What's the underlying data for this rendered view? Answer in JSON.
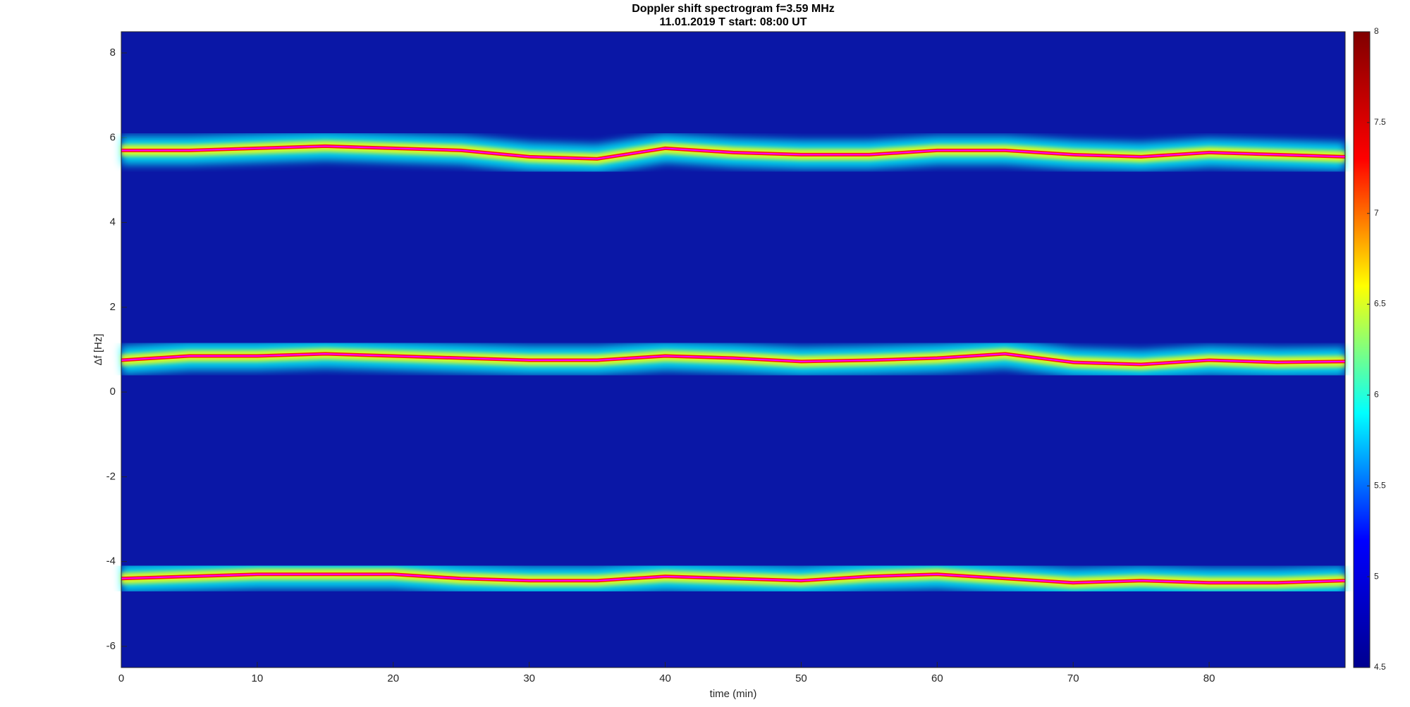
{
  "chart_data": {
    "type": "spectrogram",
    "title": "Doppler shift spectrogram f=3.59 MHz",
    "subtitle": "11.01.2019   T start: 08:00 UT",
    "x_label": "time (min)",
    "y_label": "Δf [Hz]",
    "xlim": [
      0,
      90
    ],
    "xticks": [
      0,
      10,
      20,
      30,
      40,
      50,
      60,
      70,
      80
    ],
    "ylim": [
      -6.5,
      8.5
    ],
    "yticks": [
      -6,
      -4,
      -2,
      0,
      2,
      4,
      6,
      8
    ],
    "colormap": "jet",
    "clim": [
      4.5,
      8
    ],
    "cticks": [
      4.5,
      5,
      5.5,
      6,
      6.5,
      7,
      7.5,
      8
    ],
    "x": [
      0,
      5,
      10,
      15,
      20,
      25,
      30,
      35,
      40,
      45,
      50,
      55,
      60,
      65,
      70,
      75,
      80,
      85,
      90
    ],
    "series": [
      {
        "color": "#ff00ff",
        "values": [
          5.7,
          5.7,
          5.75,
          5.8,
          5.75,
          5.7,
          5.55,
          5.5,
          5.75,
          5.65,
          5.6,
          5.6,
          5.7,
          5.7,
          5.6,
          5.55,
          5.65,
          5.6,
          5.55
        ]
      },
      {
        "color": "#ff00ff",
        "values": [
          0.75,
          0.85,
          0.85,
          0.9,
          0.85,
          0.8,
          0.75,
          0.75,
          0.85,
          0.8,
          0.72,
          0.75,
          0.8,
          0.9,
          0.7,
          0.65,
          0.75,
          0.7,
          0.72
        ]
      },
      {
        "color": "#ff00ff",
        "values": [
          -4.4,
          -4.35,
          -4.3,
          -4.3,
          -4.3,
          -4.4,
          -4.45,
          -4.45,
          -4.35,
          -4.4,
          -4.45,
          -4.35,
          -4.3,
          -4.4,
          -4.5,
          -4.45,
          -4.5,
          -4.5,
          -4.45
        ]
      }
    ]
  }
}
